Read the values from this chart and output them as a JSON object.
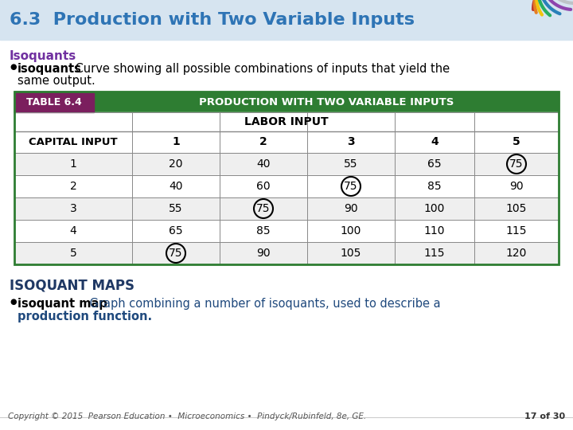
{
  "title": "6.3  Production with Two Variable Inputs",
  "title_color": "#2E74B5",
  "bg_color": "#FFFFFF",
  "isoquants_header": "Isoquants",
  "isoquants_header_color": "#7030A0",
  "bullet1_bold": "isoquants",
  "bullet1_rest": "    Curve showing all possible combinations of inputs that yield the",
  "bullet1_line2": "same output.",
  "table_label": "TABLE 6.4",
  "table_title": "PRODUCTION WITH TWO VARIABLE INPUTS",
  "table_header_bg": "#2E7D32",
  "table_label_bg": "#7B1F5E",
  "table_sub_header": "LABOR INPUT",
  "col_header": "CAPITAL INPUT",
  "labor_cols": [
    "1",
    "2",
    "3",
    "4",
    "5"
  ],
  "capital_rows": [
    "1",
    "2",
    "3",
    "4",
    "5"
  ],
  "table_data": [
    [
      20,
      40,
      55,
      65,
      75
    ],
    [
      40,
      60,
      75,
      85,
      90
    ],
    [
      55,
      75,
      90,
      100,
      105
    ],
    [
      65,
      85,
      100,
      110,
      115
    ],
    [
      75,
      90,
      105,
      115,
      120
    ]
  ],
  "circled_cells": [
    [
      0,
      4
    ],
    [
      1,
      2
    ],
    [
      2,
      1
    ],
    [
      4,
      0
    ]
  ],
  "isoquant_maps_header": "ISOQUANT MAPS",
  "isoquant_maps_color": "#1F3864",
  "bullet2_bold": "isoquant map",
  "bullet2_rest": "    Graph combining a number of isoquants, used to describe a",
  "bullet2_line2": "production function.",
  "bullet2_color": "#1F497D",
  "footer_text": "Copyright © 2015  Pearson Education •  Microeconomics •  Pindyck/Rubinfeld, 8e, GE.",
  "footer_page": "17 of 30",
  "title_bg_color": "#D6E4F0",
  "title_strip_color": "#D6E4F0"
}
